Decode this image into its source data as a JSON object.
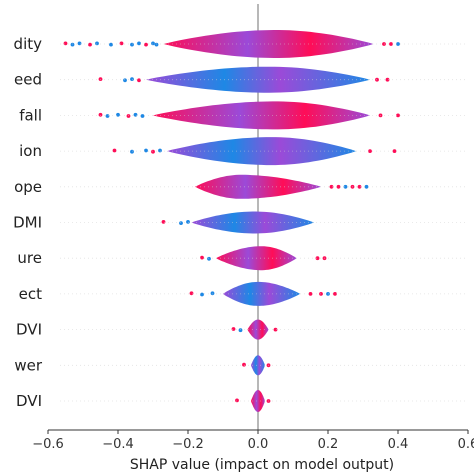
{
  "chart_data": {
    "type": "violin",
    "xlabel": "SHAP value (impact on model output)",
    "xlim": [
      -0.6,
      0.6
    ],
    "xticks": [
      -0.6,
      -0.4,
      -0.2,
      0.0,
      0.2,
      0.4,
      0.6
    ],
    "xtick_labels": [
      "−0.6",
      "−0.4",
      "−0.2",
      "0.0",
      "0.2",
      "0.4",
      "0.6"
    ],
    "zero_line": true,
    "color_low": "#1e88e5",
    "color_mid": "#9b4ad8",
    "color_high": "#ff0d57",
    "features": [
      {
        "label": "dity",
        "range": [
          -0.27,
          0.33
        ],
        "peak": 0.05,
        "half": 14,
        "outliers_low": [
          -0.55,
          -0.53,
          -0.51,
          -0.48,
          -0.46,
          -0.42,
          -0.39,
          -0.36,
          -0.34,
          -0.32,
          -0.3,
          -0.29
        ],
        "outliers_high": [
          0.36,
          0.38,
          0.4
        ]
      },
      {
        "label": "eed",
        "range": [
          -0.32,
          0.32
        ],
        "peak": 0.03,
        "half": 13,
        "outliers_low": [
          -0.45,
          -0.38,
          -0.36,
          -0.34
        ],
        "outliers_high": [
          0.34,
          0.37
        ]
      },
      {
        "label": "fall",
        "range": [
          -0.3,
          0.32
        ],
        "peak": 0.05,
        "half": 14,
        "outliers_low": [
          -0.45,
          -0.43,
          -0.4,
          -0.37,
          -0.35,
          -0.33
        ],
        "outliers_high": [
          0.35,
          0.4
        ]
      },
      {
        "label": "ion",
        "range": [
          -0.26,
          0.28
        ],
        "peak": 0.04,
        "half": 14,
        "outliers_low": [
          -0.41,
          -0.36,
          -0.32,
          -0.3,
          -0.28
        ],
        "outliers_high": [
          0.32,
          0.39
        ]
      },
      {
        "label": "ope",
        "range": [
          -0.18,
          0.18
        ],
        "peak": -0.05,
        "half": 12,
        "outliers_low": [],
        "outliers_high": [
          0.21,
          0.23,
          0.25,
          0.27,
          0.29,
          0.31
        ]
      },
      {
        "label": "DMI",
        "range": [
          -0.19,
          0.16
        ],
        "peak": -0.01,
        "half": 11,
        "outliers_low": [
          -0.27,
          -0.22,
          -0.2
        ],
        "outliers_high": []
      },
      {
        "label": "ure",
        "range": [
          -0.12,
          0.11
        ],
        "peak": 0.01,
        "half": 12,
        "outliers_low": [
          -0.16,
          -0.14
        ],
        "outliers_high": [
          0.17,
          0.19
        ]
      },
      {
        "label": "ect",
        "range": [
          -0.1,
          0.12
        ],
        "peak": 0.0,
        "half": 12,
        "outliers_low": [
          -0.19,
          -0.16,
          -0.13
        ],
        "outliers_high": [
          0.15,
          0.18,
          0.2,
          0.22
        ]
      },
      {
        "label": "DVI",
        "range": [
          -0.03,
          0.03
        ],
        "peak": 0.0,
        "half": 10,
        "outliers_low": [
          -0.07,
          -0.05
        ],
        "outliers_high": [
          0.05
        ]
      },
      {
        "label": "wer",
        "range": [
          -0.02,
          0.02
        ],
        "peak": 0.0,
        "half": 10,
        "outliers_low": [
          -0.04
        ],
        "outliers_high": [
          0.03
        ]
      },
      {
        "label": "DVI",
        "range": [
          -0.02,
          0.02
        ],
        "peak": 0.0,
        "half": 11,
        "outliers_low": [
          -0.06
        ],
        "outliers_high": [
          0.03
        ]
      }
    ]
  }
}
